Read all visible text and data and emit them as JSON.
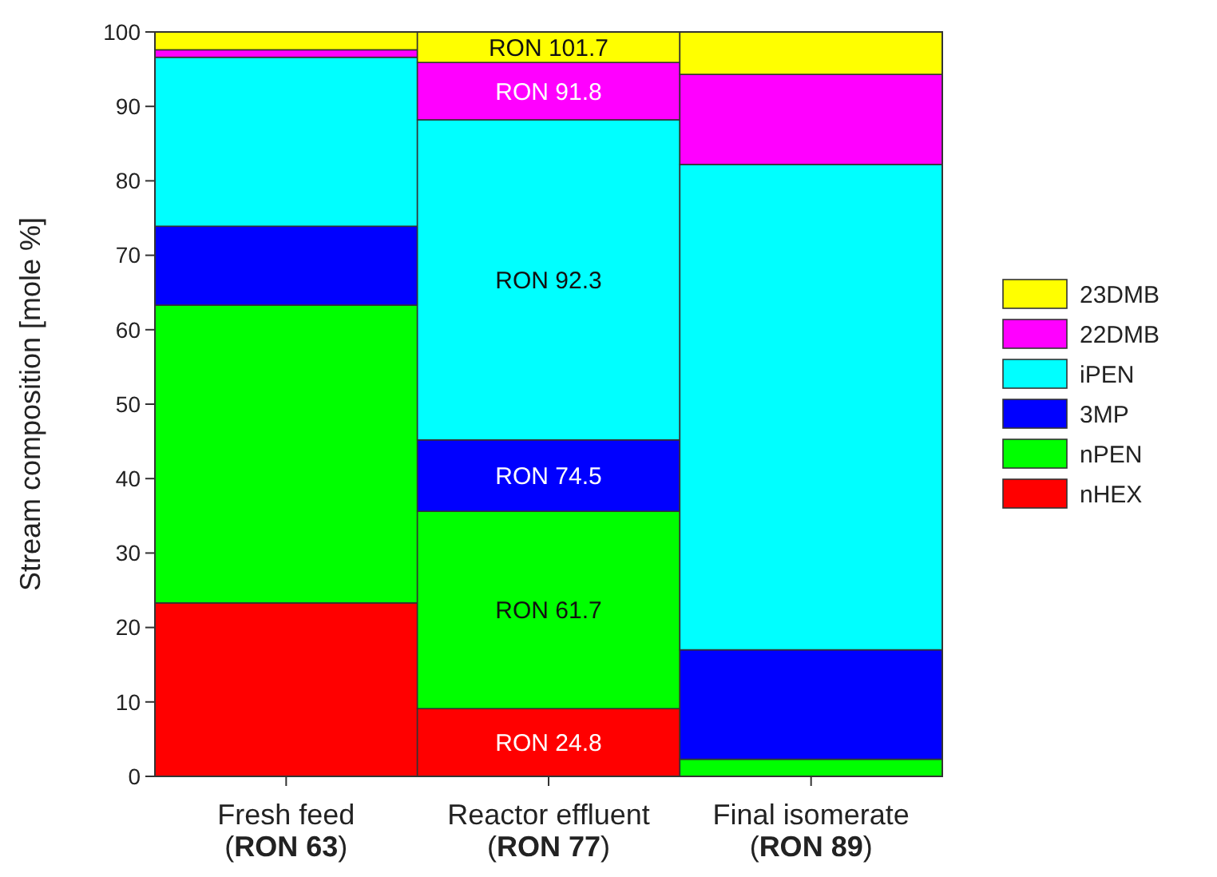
{
  "chart_data": {
    "type": "bar",
    "stacked": true,
    "ylabel": "Stream composition [mole %]",
    "categories": [
      "Fresh feed\n(RON 63)",
      "Reactor effluent\n(RON 77)",
      "Final isomerate\n(RON 89)"
    ],
    "series": [
      {
        "name": "nHEX",
        "color": "#ff0000",
        "values": [
          23.3,
          9.1,
          0
        ],
        "value_labels": [
          null,
          "RON 24.8",
          null
        ]
      },
      {
        "name": "nPEN",
        "color": "#00ff00",
        "values": [
          40.0,
          26.5,
          2.3
        ],
        "value_labels": [
          null,
          "RON 61.7",
          null
        ]
      },
      {
        "name": "3MP",
        "color": "#0000ff",
        "values": [
          10.6,
          9.6,
          14.7
        ],
        "value_labels": [
          null,
          "RON 74.5",
          null
        ]
      },
      {
        "name": "iPEN",
        "color": "#00ffff",
        "values": [
          22.7,
          43.0,
          65.2
        ],
        "value_labels": [
          null,
          "RON 92.3",
          null
        ]
      },
      {
        "name": "22DMB",
        "color": "#ff00ff",
        "values": [
          1.0,
          7.7,
          12.1
        ],
        "value_labels": [
          null,
          "RON 91.8",
          null
        ]
      },
      {
        "name": "23DMB",
        "color": "#ffff00",
        "values": [
          2.4,
          4.1,
          5.7
        ],
        "value_labels": [
          null,
          "RON 101.7",
          null
        ]
      }
    ],
    "ylim": [
      0,
      100
    ],
    "yticks": [
      0,
      10,
      20,
      30,
      40,
      50,
      60,
      70,
      80,
      90,
      100
    ],
    "legend": "right"
  }
}
